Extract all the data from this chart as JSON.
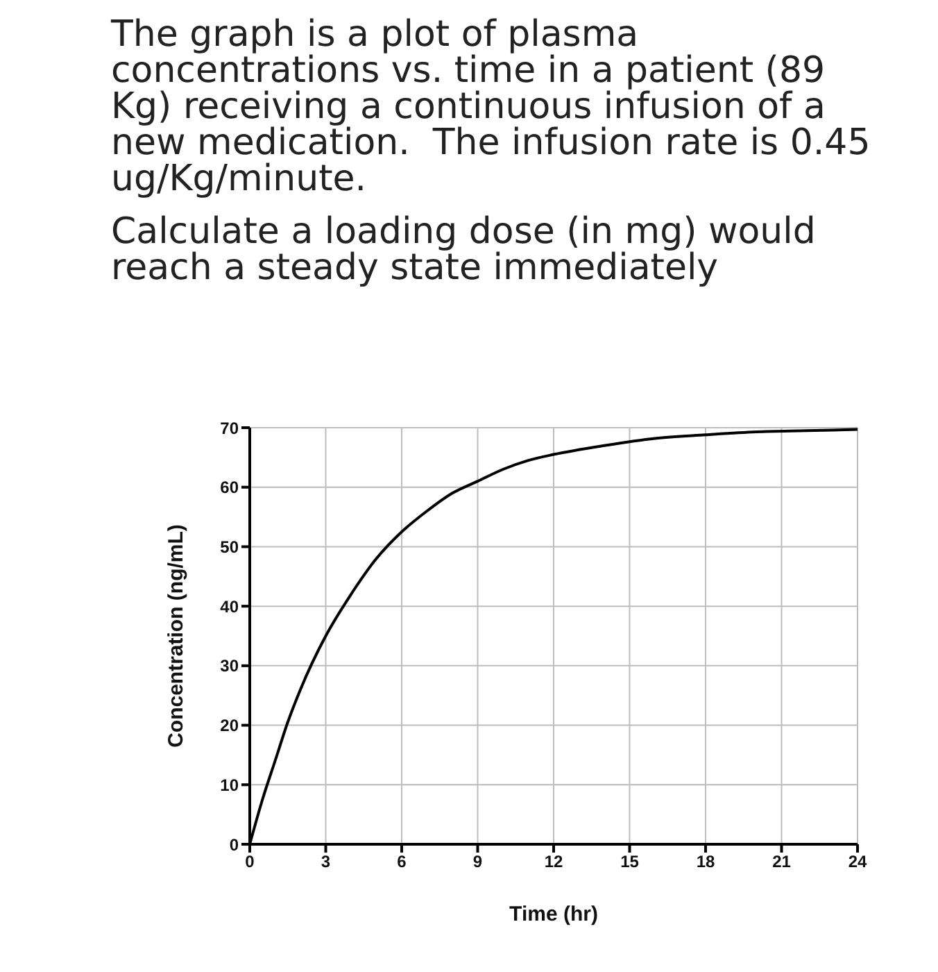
{
  "chart_data": {
    "type": "line",
    "title": "The graph is a plot of plasma concentrations vs. time in a patient (89 Kg) receiving a continuous infusion of a new medication.  The infusion rate is 0.45 ug/Kg/minute.",
    "subtitle": "Calculate a loading dose (in mg) would reach a steady state immediately",
    "xlabel": "Time (hr)",
    "ylabel": "Concentration (ng/mL)",
    "x": [
      0,
      0.5,
      1,
      1.5,
      2,
      3,
      4,
      5,
      6,
      7,
      8,
      9,
      10,
      11,
      12,
      14,
      16,
      18,
      20,
      22,
      24
    ],
    "series": [
      {
        "color": "#000000",
        "values": [
          0,
          7.5,
          14,
          20.5,
          26,
          35,
          42,
          48,
          52.5,
          56,
          59,
          61,
          63,
          64.5,
          65.5,
          67,
          68.2,
          68.8,
          69.3,
          69.5,
          69.7
        ]
      }
    ],
    "xlim": [
      0,
      24
    ],
    "xticks": [
      0,
      3,
      6,
      9,
      12,
      15,
      18,
      21,
      24
    ],
    "ylim": [
      0,
      70
    ],
    "yticks": [
      0,
      10,
      20,
      30,
      40,
      50,
      60,
      70
    ],
    "grid": true,
    "legend": false,
    "marker": "none",
    "line_style": "solid"
  }
}
